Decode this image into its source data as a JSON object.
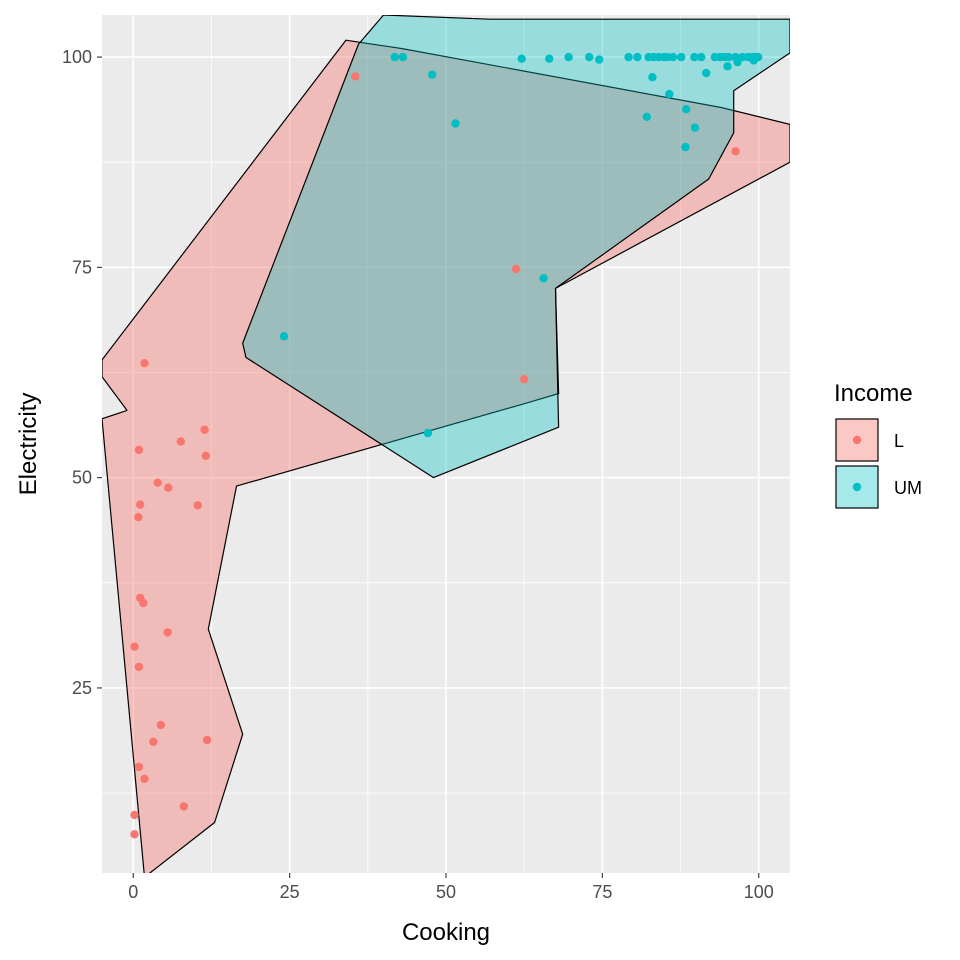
{
  "chart_data": {
    "type": "scatter",
    "title": "",
    "xlabel": "Cooking",
    "ylabel": "Electricity",
    "xlim": [
      -5,
      105
    ],
    "ylim": [
      3,
      105
    ],
    "x_ticks": [
      0,
      25,
      50,
      75,
      100
    ],
    "y_ticks": [
      25,
      50,
      75,
      100
    ],
    "grid": true,
    "legend": {
      "title": "Income",
      "placement": "right",
      "entries": [
        {
          "key": "L",
          "label": "L",
          "color": "#F8766D",
          "fill": "rgba(248,118,109,0.4)"
        },
        {
          "key": "UM",
          "label": "UM",
          "color": "#00BFC4",
          "fill": "rgba(0,191,196,0.35)"
        }
      ]
    },
    "series": [
      {
        "name": "L",
        "color": "#F8766D",
        "points": [
          [
            35.5,
            97.7
          ],
          [
            61.2,
            74.8
          ],
          [
            62.5,
            61.7
          ],
          [
            96.3,
            88.8
          ],
          [
            1.8,
            63.6
          ],
          [
            11.4,
            55.7
          ],
          [
            7.6,
            54.3
          ],
          [
            11.6,
            52.6
          ],
          [
            0.9,
            53.3
          ],
          [
            3.9,
            49.4
          ],
          [
            5.6,
            48.8
          ],
          [
            1.1,
            46.8
          ],
          [
            10.3,
            46.7
          ],
          [
            0.8,
            45.3
          ],
          [
            1.1,
            35.7
          ],
          [
            1.6,
            35.1
          ],
          [
            5.5,
            31.6
          ],
          [
            0.2,
            29.9
          ],
          [
            0.9,
            27.5
          ],
          [
            4.4,
            20.6
          ],
          [
            3.2,
            18.6
          ],
          [
            11.8,
            18.8
          ],
          [
            0.9,
            15.6
          ],
          [
            1.8,
            14.2
          ],
          [
            8.1,
            10.9
          ],
          [
            0.2,
            9.9
          ],
          [
            0.2,
            7.6
          ]
        ]
      },
      {
        "name": "UM",
        "color": "#00BFC4",
        "points": [
          [
            41.8,
            100
          ],
          [
            43.1,
            100
          ],
          [
            47.8,
            97.9
          ],
          [
            51.5,
            92.1
          ],
          [
            62.1,
            99.8
          ],
          [
            66.5,
            99.8
          ],
          [
            69.6,
            100
          ],
          [
            72.9,
            100
          ],
          [
            74.5,
            99.7
          ],
          [
            79.2,
            100
          ],
          [
            80.6,
            100
          ],
          [
            82.4,
            100
          ],
          [
            83.2,
            100
          ],
          [
            84.0,
            100
          ],
          [
            84.8,
            100
          ],
          [
            85.4,
            100
          ],
          [
            86.3,
            100
          ],
          [
            87.6,
            100
          ],
          [
            89.7,
            100
          ],
          [
            90.8,
            100
          ],
          [
            93.0,
            100
          ],
          [
            93.8,
            100
          ],
          [
            94.5,
            100
          ],
          [
            95.2,
            100
          ],
          [
            96.3,
            100
          ],
          [
            97.4,
            100
          ],
          [
            98.3,
            100
          ],
          [
            99.0,
            100
          ],
          [
            99.6,
            100
          ],
          [
            99.9,
            100
          ],
          [
            96.6,
            99.4
          ],
          [
            95.0,
            98.9
          ],
          [
            99.2,
            99.6
          ],
          [
            83.0,
            97.6
          ],
          [
            85.7,
            95.6
          ],
          [
            91.6,
            98.1
          ],
          [
            88.4,
            93.8
          ],
          [
            82.1,
            92.9
          ],
          [
            89.8,
            91.6
          ],
          [
            88.3,
            89.3
          ],
          [
            65.6,
            73.7
          ],
          [
            24.1,
            66.8
          ],
          [
            47.1,
            55.3
          ]
        ]
      }
    ],
    "hulls": [
      {
        "name": "L",
        "fill": "rgba(248,118,109,0.4)",
        "polygon": [
          [
            1.8,
            2.5
          ],
          [
            13,
            9
          ],
          [
            17.5,
            19.5
          ],
          [
            12,
            32
          ],
          [
            16.5,
            49
          ],
          [
            63.5,
            59
          ],
          [
            68,
            60
          ],
          [
            67.5,
            72.5
          ],
          [
            105,
            87.5
          ],
          [
            105,
            92
          ],
          [
            94,
            94
          ],
          [
            43,
            101
          ],
          [
            34,
            102
          ],
          [
            -5,
            64
          ],
          [
            -5,
            62
          ],
          [
            -1,
            58
          ],
          [
            -5,
            57
          ]
        ]
      },
      {
        "name": "UM",
        "fill": "rgba(0,191,196,0.35)",
        "polygon": [
          [
            48,
            50
          ],
          [
            68,
            56
          ],
          [
            67.5,
            72.5
          ],
          [
            92,
            85.5
          ],
          [
            96,
            91
          ],
          [
            96,
            96
          ],
          [
            105,
            100.5
          ],
          [
            105,
            104.5
          ],
          [
            95,
            104.5
          ],
          [
            57,
            104.5
          ],
          [
            40,
            105
          ],
          [
            36,
            101.5
          ],
          [
            17.5,
            66
          ],
          [
            18,
            64.3
          ]
        ]
      }
    ]
  }
}
